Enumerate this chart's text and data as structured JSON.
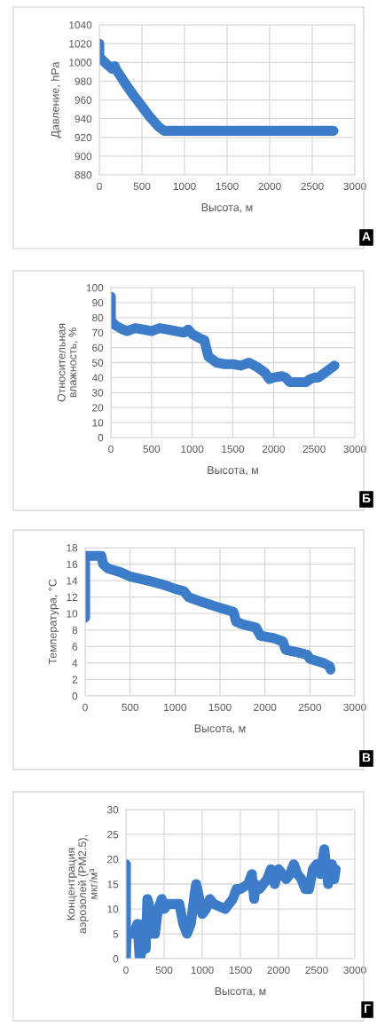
{
  "chart_data": [
    {
      "type": "line",
      "xlabel": "Высота, м",
      "ylabel": "Давление, hPa",
      "annotations": [
        "А"
      ],
      "xlim": [
        0,
        3000
      ],
      "xticks": [
        0,
        500,
        1000,
        1500,
        2000,
        2500,
        3000
      ],
      "ylim": [
        880,
        1040
      ],
      "yticks": [
        880,
        900,
        920,
        940,
        960,
        980,
        1000,
        1020,
        1040
      ],
      "grid": true,
      "line_style": "solid",
      "marker": "none",
      "series": [
        {
          "color": "#3d7cc9",
          "x": [
            0,
            0,
            30,
            100,
            150,
            180,
            200,
            250,
            300,
            400,
            500,
            600,
            700,
            760,
            1000,
            1500,
            2000,
            2500,
            2750
          ],
          "values": [
            1020,
            1006,
            1003,
            997,
            993,
            996,
            992,
            985,
            978,
            965,
            953,
            941,
            931,
            927,
            927,
            927,
            927,
            927,
            927
          ]
        }
      ]
    },
    {
      "type": "line",
      "xlabel": "Высота, м",
      "ylabel": "Относительная\nвлажность, %",
      "annotations": [
        "Б"
      ],
      "xlim": [
        0,
        3000
      ],
      "xticks": [
        0,
        500,
        1000,
        1500,
        2000,
        2500,
        3000
      ],
      "ylim": [
        0,
        100
      ],
      "yticks": [
        0,
        10,
        20,
        30,
        40,
        50,
        60,
        70,
        80,
        90,
        100
      ],
      "grid": true,
      "line_style": "solid",
      "marker": "none",
      "series": [
        {
          "color": "#3d7cc9",
          "x": [
            0,
            0,
            50,
            150,
            200,
            300,
            400,
            500,
            600,
            700,
            800,
            900,
            950,
            1000,
            1100,
            1150,
            1180,
            1200,
            1300,
            1400,
            1500,
            1600,
            1700,
            1800,
            1900,
            1950,
            2000,
            2100,
            2150,
            2200,
            2300,
            2400,
            2450,
            2500,
            2550,
            2600,
            2700,
            2750
          ],
          "values": [
            94,
            78,
            75,
            72,
            71,
            73,
            72,
            71,
            73,
            72,
            71,
            70,
            72,
            69,
            66,
            65,
            58,
            54,
            50,
            49,
            49,
            48,
            50,
            47,
            43,
            39,
            40,
            41,
            40,
            37,
            37,
            37,
            39,
            40,
            40,
            42,
            46,
            48
          ]
        }
      ]
    },
    {
      "type": "line",
      "xlabel": "Высота, м",
      "ylabel": "Температура, °C",
      "annotations": [
        "В"
      ],
      "xlim": [
        0,
        3000
      ],
      "xticks": [
        0,
        500,
        1000,
        1500,
        2000,
        2500,
        3000
      ],
      "ylim": [
        0,
        18
      ],
      "yticks": [
        0,
        2,
        4,
        6,
        8,
        10,
        12,
        14,
        16,
        18
      ],
      "grid": true,
      "line_style": "solid",
      "marker": "none",
      "series": [
        {
          "color": "#3d7cc9",
          "x": [
            0,
            0,
            100,
            180,
            200,
            250,
            400,
            500,
            700,
            900,
            1000,
            1100,
            1150,
            1300,
            1500,
            1650,
            1680,
            1750,
            1900,
            1950,
            2100,
            2200,
            2230,
            2400,
            2470,
            2500,
            2650,
            2720,
            2730
          ],
          "values": [
            9.5,
            17,
            17,
            17,
            16,
            15.5,
            15,
            14.5,
            14,
            13.4,
            13,
            12.7,
            12,
            11.4,
            10.7,
            10.2,
            9,
            8.7,
            8.3,
            7.3,
            7,
            6.6,
            5.6,
            5.2,
            5,
            4.5,
            4,
            3.6,
            3.2
          ]
        }
      ]
    },
    {
      "type": "line",
      "xlabel": "Высота, м",
      "ylabel": "Концентрация\nаэрозолей (PM2.5),\nмкг/м³",
      "annotations": [
        "Г"
      ],
      "xlim": [
        0,
        3000
      ],
      "xticks": [
        0,
        500,
        1000,
        1500,
        2000,
        2500,
        3000
      ],
      "ylim": [
        0,
        30
      ],
      "yticks": [
        0,
        5,
        10,
        15,
        20,
        25,
        30
      ],
      "grid": true,
      "line_style": "solid",
      "marker": "none",
      "series": [
        {
          "color": "#3d7cc9",
          "x": [
            0,
            0,
            10,
            100,
            150,
            180,
            200,
            230,
            260,
            280,
            300,
            330,
            380,
            420,
            470,
            500,
            550,
            650,
            700,
            750,
            800,
            850,
            900,
            920,
            950,
            1000,
            1050,
            1100,
            1150,
            1300,
            1400,
            1450,
            1500,
            1600,
            1650,
            1680,
            1700,
            1750,
            1850,
            1900,
            1950,
            2000,
            2100,
            2150,
            2200,
            2250,
            2300,
            2350,
            2400,
            2450,
            2500,
            2550,
            2600,
            2650,
            2700,
            2730,
            2750
          ],
          "values": [
            19,
            0,
            5,
            5,
            7,
            0,
            1,
            7,
            2,
            12,
            11,
            5,
            5,
            10,
            12,
            10,
            11,
            11,
            11,
            7,
            5,
            7,
            13,
            15,
            13,
            9,
            10,
            12,
            11,
            10,
            12,
            14,
            14,
            15,
            17,
            12,
            15,
            14,
            16,
            18,
            15,
            18,
            16,
            17,
            19,
            17,
            16,
            14,
            14,
            18,
            19,
            17,
            22,
            15,
            19,
            16,
            18
          ]
        }
      ]
    }
  ]
}
